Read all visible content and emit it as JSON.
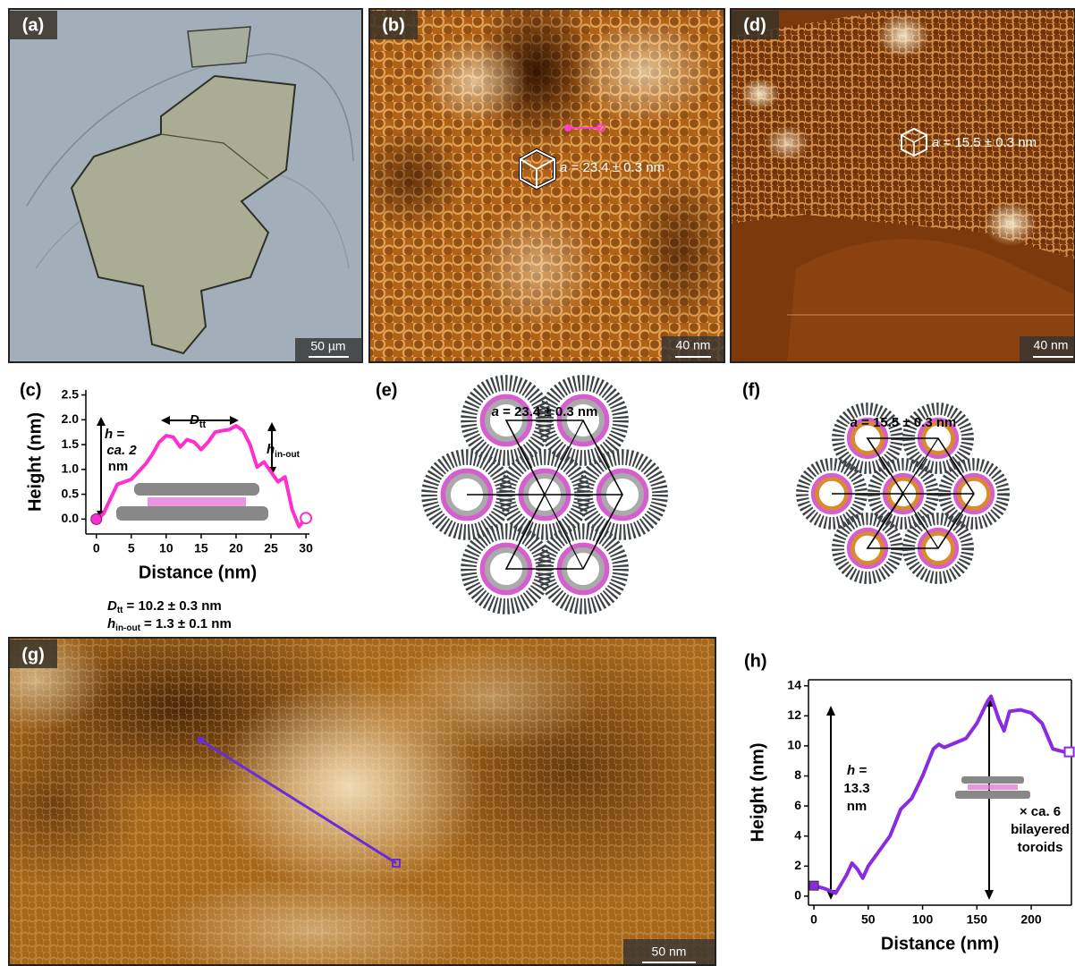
{
  "panels": {
    "a": {
      "label": "(a)",
      "scale_bar": "50 µm"
    },
    "b": {
      "label": "(b)",
      "lattice": {
        "symbol": "a",
        "text": "= 23.4 ± 0.3 nm"
      },
      "scale_bar": "40 nm"
    },
    "d": {
      "label": "(d)",
      "lattice": {
        "symbol": "a",
        "text": "= 15.5 ± 0.3 nm"
      },
      "scale_bar": "40 nm"
    },
    "e": {
      "label": "(e)",
      "lattice": {
        "symbol": "a",
        "text": "= 23.4 ± 0.3 nm"
      }
    },
    "f": {
      "label": "(f)",
      "lattice": {
        "symbol": "a",
        "text": "= 15.5 ± 0.3 nm"
      }
    },
    "g": {
      "label": "(g)",
      "scale_bar": "50 nm"
    }
  },
  "chart_data": [
    {
      "type": "line",
      "panel_label": "(c)",
      "x_label": "Distance (nm)",
      "y_label": "Height (nm)",
      "x": [
        0,
        1,
        2,
        3,
        4,
        5,
        6,
        7,
        8,
        9,
        10,
        11,
        12,
        13,
        14,
        15,
        16,
        17,
        18,
        19,
        20,
        21,
        22,
        23,
        24,
        25,
        26,
        27,
        28,
        29,
        30
      ],
      "series": [
        {
          "color": "#ff2fcf",
          "values": [
            0,
            0.1,
            0.4,
            0.7,
            0.75,
            0.8,
            0.95,
            1.1,
            1.3,
            1.55,
            1.68,
            1.65,
            1.45,
            1.6,
            1.55,
            1.4,
            1.55,
            1.75,
            1.78,
            1.8,
            1.88,
            1.78,
            1.5,
            1.05,
            1.15,
            0.95,
            0.75,
            0.85,
            0.2,
            -0.15,
            0.02
          ]
        }
      ],
      "xlim": [
        -1.5,
        30.5
      ],
      "ylim": [
        -0.3,
        2.6
      ],
      "xticks": [
        0,
        5,
        10,
        15,
        20,
        25,
        30
      ],
      "yticks": [
        {
          "value": 0,
          "label": "0.0"
        },
        0.5,
        {
          "value": 1,
          "label": "1.0"
        },
        1.5,
        {
          "value": 2,
          "label": "2.0"
        },
        2.5
      ],
      "height_note": [
        "h =",
        "ca. 2",
        "nm"
      ],
      "diameter_note": {
        "symbol": "D",
        "subscript": "tt"
      },
      "step_note": {
        "symbol": "h",
        "subscript": "in-out"
      },
      "results": [
        {
          "symbol": "D",
          "subscript": "tt",
          "text": "= 10.2 ± 0.3 nm"
        },
        {
          "symbol": "h",
          "subscript": "in-out",
          "text": "= 1.3 ± 0.1 nm"
        }
      ]
    },
    {
      "type": "line",
      "panel_label": "(h)",
      "x_label": "Distance (nm)",
      "y_label": "Height (nm)",
      "x": [
        0,
        10,
        20,
        30,
        35,
        40,
        45,
        50,
        60,
        70,
        80,
        90,
        100,
        110,
        115,
        120,
        130,
        140,
        150,
        160,
        163,
        170,
        175,
        180,
        190,
        200,
        210,
        220,
        230,
        235
      ],
      "series": [
        {
          "color": "#8a2be2",
          "values": [
            0.7,
            0.5,
            0.2,
            1.4,
            2.2,
            1.8,
            1.2,
            2.0,
            3.0,
            4.0,
            5.8,
            6.5,
            8.0,
            9.8,
            10.1,
            9.9,
            10.2,
            10.5,
            11.5,
            13.0,
            13.3,
            11.8,
            11.0,
            12.3,
            12.4,
            12.2,
            11.5,
            9.8,
            9.6,
            9.6
          ]
        }
      ],
      "xlim": [
        -5,
        237
      ],
      "ylim": [
        -0.6,
        14.4
      ],
      "xticks": [
        0,
        50,
        100,
        150,
        200
      ],
      "yticks": [
        0,
        2,
        4,
        6,
        8,
        10,
        12,
        14
      ],
      "height_note": [
        "h =",
        "13.3",
        "nm"
      ],
      "stack_note": [
        "× ca. 6",
        "bilayered",
        "toroids"
      ]
    }
  ]
}
